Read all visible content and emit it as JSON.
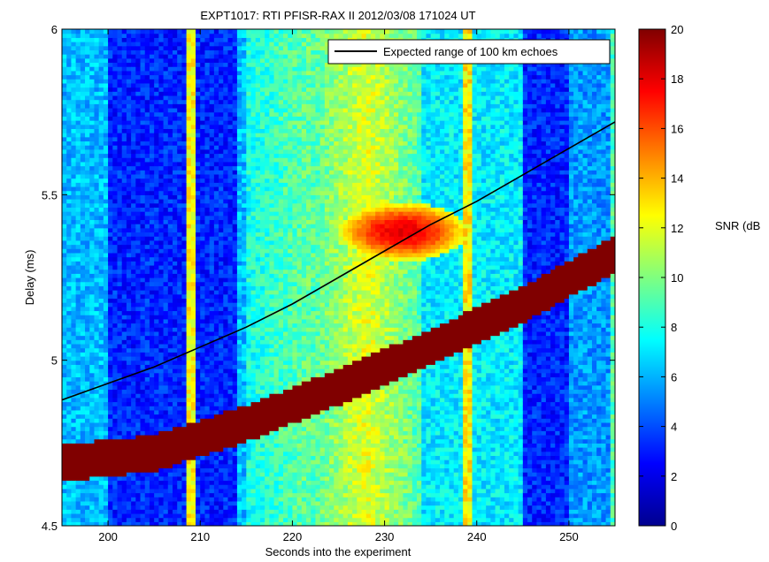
{
  "chart_data": {
    "type": "heatmap",
    "title": "EXPT1017: RTI PFISR-RAX II 2012/03/08 171024 UT",
    "xlabel": "Seconds into the experiment",
    "ylabel": "Delay (ms)",
    "xlim": [
      195,
      255
    ],
    "ylim": [
      4.5,
      6.0
    ],
    "xticks": [
      "200",
      "210",
      "220",
      "230",
      "240",
      "250"
    ],
    "yticks": [
      "4.5",
      "5",
      "5.5",
      "6"
    ],
    "colorbar": {
      "label": "SNR (dB",
      "range": [
        0,
        20
      ],
      "ticks": [
        "0",
        "2",
        "4",
        "6",
        "8",
        "10",
        "12",
        "14",
        "16",
        "18",
        "20"
      ],
      "colormap": "jet"
    },
    "legend": {
      "position": "top-right",
      "entries": [
        "Expected range of 100 km echoes"
      ]
    },
    "series": [
      {
        "name": "Expected range of 100 km echoes",
        "type": "line",
        "color": "#000000",
        "x": [
          195,
          200,
          205,
          210,
          215,
          220,
          225,
          230,
          235,
          240,
          245,
          250,
          255
        ],
        "y": [
          4.88,
          4.93,
          4.98,
          5.04,
          5.1,
          5.17,
          5.25,
          5.33,
          5.41,
          5.48,
          5.56,
          5.64,
          5.72
        ]
      }
    ],
    "features": {
      "saturated_band": {
        "description_value": "SNR 20",
        "x": [
          195,
          205,
          215,
          225,
          235,
          245,
          255
        ],
        "delay_center": [
          4.69,
          4.72,
          4.81,
          4.92,
          5.04,
          5.17,
          5.32
        ],
        "delay_width": 0.11
      },
      "echo_patch": {
        "x_center": 232,
        "delay_center": 5.39,
        "snr_peak": 18
      },
      "low_snr_columns": [
        {
          "x_start": 200,
          "x_end": 214,
          "snr": 2
        },
        {
          "x_start": 245,
          "x_end": 250,
          "snr": 2
        }
      ],
      "high_snr_columns": [
        {
          "x_start": 222,
          "x_end": 234,
          "snr": 11
        },
        {
          "x_start": 238.5,
          "x_end": 239.5,
          "snr": 12
        }
      ]
    }
  }
}
